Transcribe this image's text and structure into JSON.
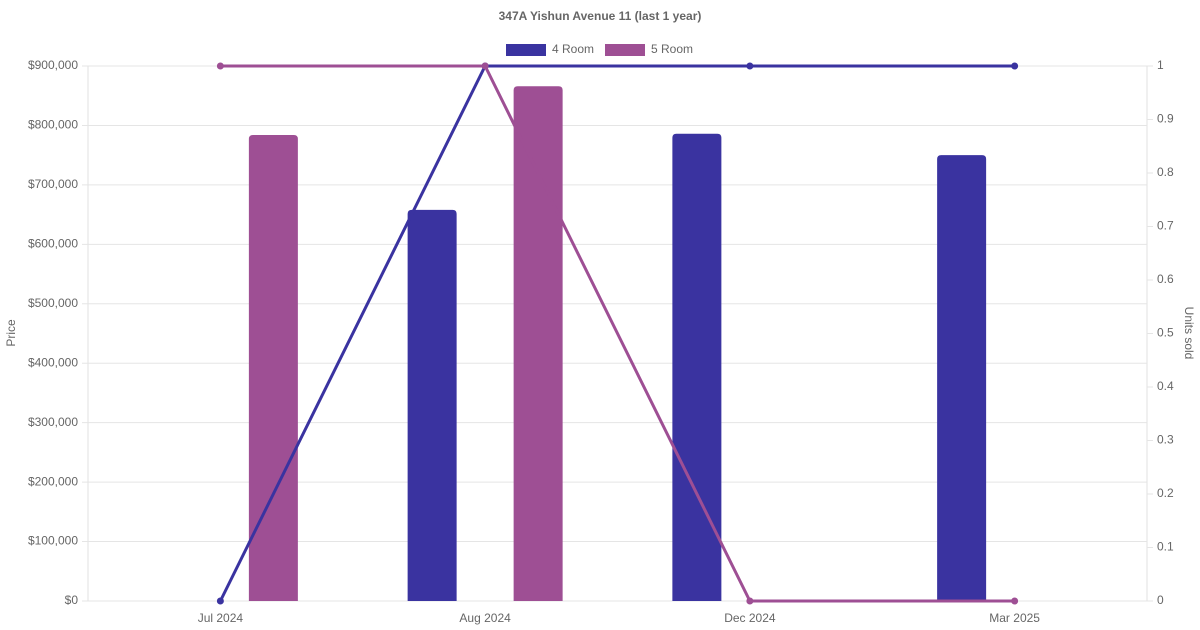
{
  "chart_data": {
    "type": "bar-line",
    "title": "347A Yishun Avenue 11 (last 1 year)",
    "categories": [
      "Jul 2024",
      "Aug 2024",
      "Dec 2024",
      "Mar 2025"
    ],
    "series": [
      {
        "name": "4 Room",
        "color": "#3a33a0",
        "values": [
          null,
          658000,
          786000,
          750000
        ],
        "units_sold": [
          0,
          1,
          1,
          1
        ]
      },
      {
        "name": "5 Room",
        "color": "#9e4f94",
        "values": [
          784000,
          866000,
          null,
          null
        ],
        "units_sold": [
          1,
          1,
          0,
          0
        ]
      }
    ],
    "y_label": "Price",
    "y2_label": "Units sold",
    "ylim": [
      0,
      900000
    ],
    "yticks": [
      {
        "value": 0,
        "label": "$0"
      },
      {
        "value": 100000,
        "label": "$100,000"
      },
      {
        "value": 200000,
        "label": "$200,000"
      },
      {
        "value": 300000,
        "label": "$300,000"
      },
      {
        "value": 400000,
        "label": "$400,000"
      },
      {
        "value": 500000,
        "label": "$500,000"
      },
      {
        "value": 600000,
        "label": "$600,000"
      },
      {
        "value": 700000,
        "label": "$700,000"
      },
      {
        "value": 800000,
        "label": "$800,000"
      },
      {
        "value": 900000,
        "label": "$900,000"
      }
    ],
    "y2lim": [
      0,
      1
    ],
    "y2ticks": [
      0,
      0.1,
      0.2,
      0.3,
      0.4,
      0.5,
      0.6,
      0.7,
      0.8,
      0.9,
      1
    ],
    "grid": true
  }
}
